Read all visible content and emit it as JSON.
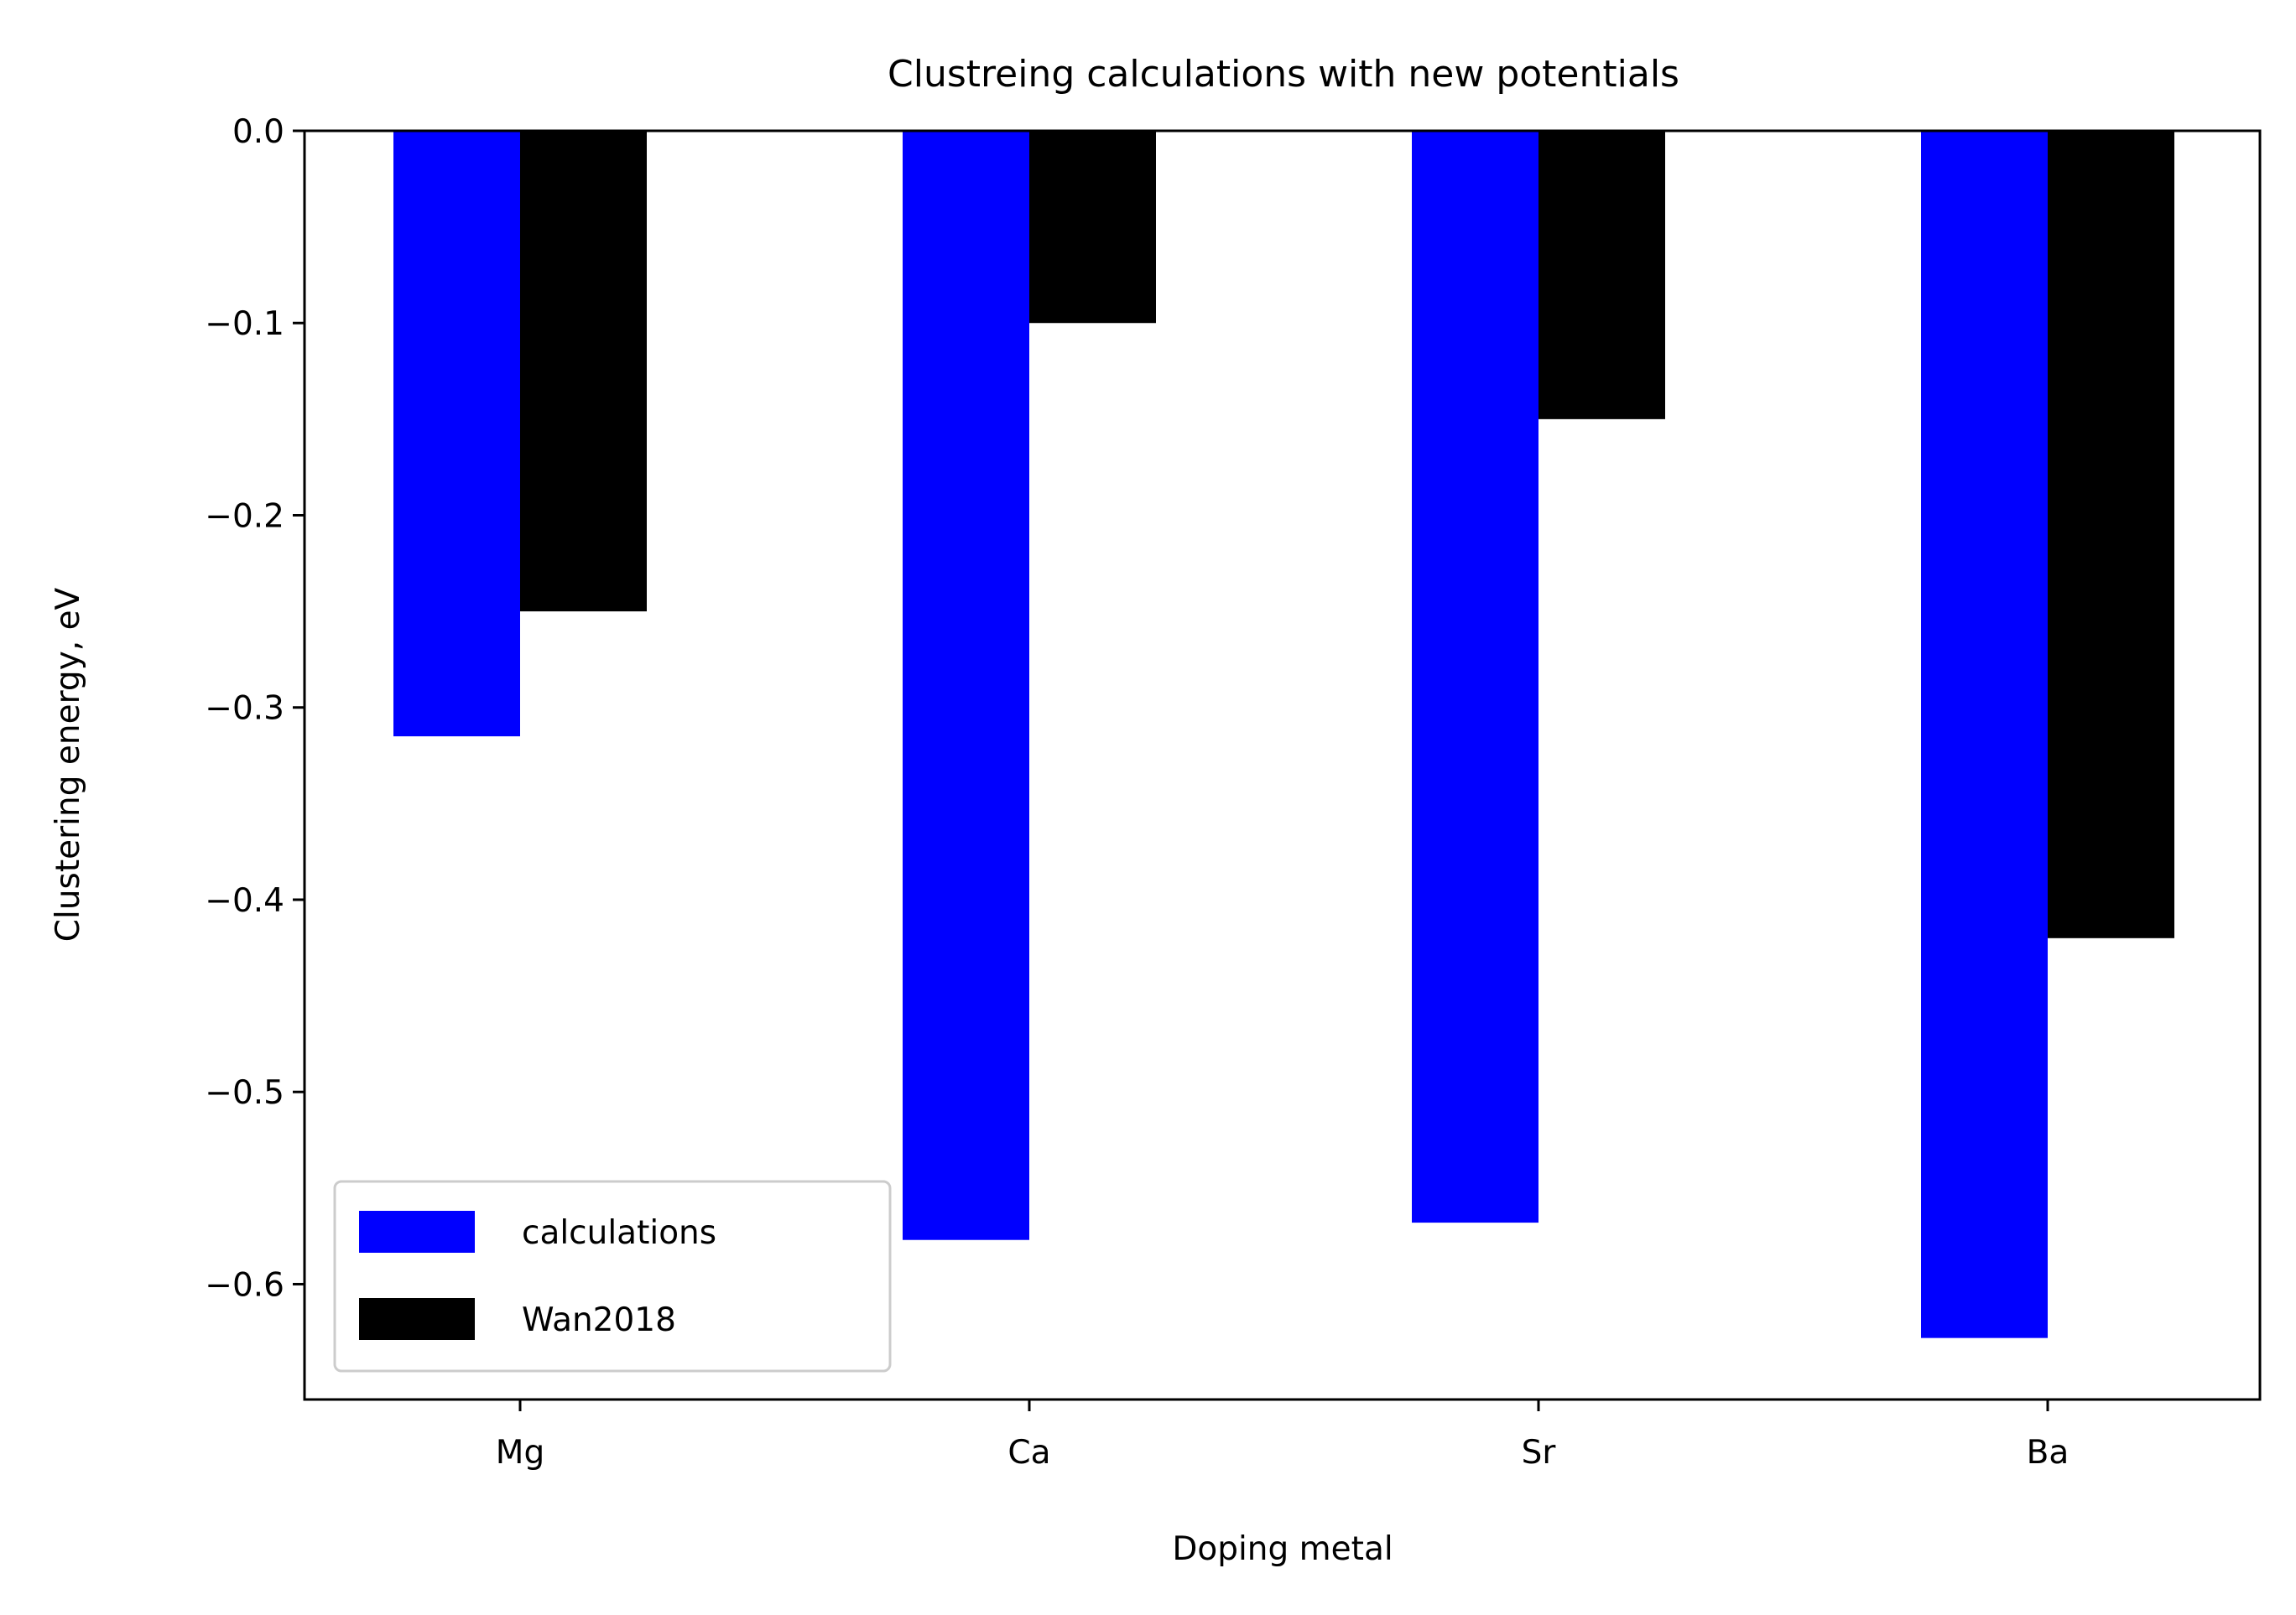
{
  "chart_data": {
    "type": "bar",
    "title": "Clustreing calculations with new potentials",
    "xlabel": "Doping metal",
    "ylabel": "Clustering energy, eV",
    "categories": [
      "Mg",
      "Ca",
      "Sr",
      "Ba"
    ],
    "series": [
      {
        "name": "calculations",
        "color": "#0000ff",
        "values": [
          -0.315,
          -0.577,
          -0.568,
          -0.628
        ]
      },
      {
        "name": "Wan2018",
        "color": "#000000",
        "values": [
          -0.25,
          -0.1,
          -0.15,
          -0.42
        ]
      }
    ],
    "ylim": [
      -0.66,
      0.0
    ],
    "yticks": [
      0.0,
      -0.1,
      -0.2,
      -0.3,
      -0.4,
      -0.5,
      -0.6
    ],
    "ytick_labels": [
      "0.0",
      "−0.1",
      "−0.2",
      "−0.3",
      "−0.4",
      "−0.5",
      "−0.6"
    ],
    "legend_position": "lower-left",
    "grid": false
  }
}
